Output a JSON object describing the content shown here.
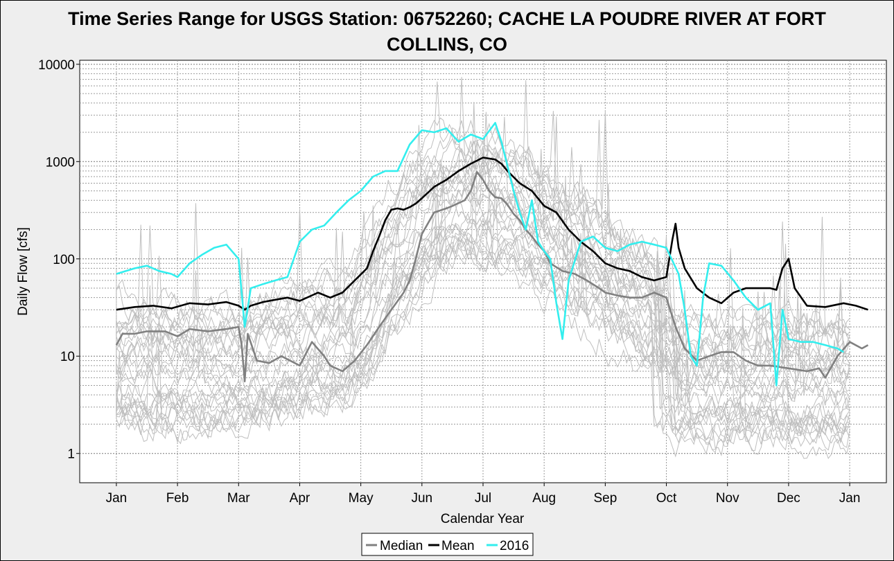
{
  "chart_data": {
    "type": "line",
    "title": "Time Series Range for USGS Station: 06752260; CACHE LA POUDRE RIVER AT FORT COLLINS, CO",
    "title_lines": [
      "Time Series Range for USGS Station: 06752260; CACHE LA POUDRE RIVER AT FORT",
      "COLLINS, CO"
    ],
    "xlabel": "Calendar Year",
    "ylabel": "Daily Flow [cfs]",
    "yscale": "log",
    "ylim": [
      0.5,
      11000
    ],
    "xlim": [
      -0.6,
      12.6
    ],
    "y_ticks": [
      1,
      10,
      100,
      1000,
      10000
    ],
    "y_tick_labels": [
      "1",
      "10",
      "100",
      "1000",
      "10000"
    ],
    "x_ticks": [
      0,
      1,
      2,
      3,
      4,
      5,
      6,
      7,
      8,
      9,
      10,
      11,
      12
    ],
    "x_tick_labels": [
      "Jan",
      "Feb",
      "Mar",
      "Apr",
      "May",
      "Jun",
      "Jul",
      "Aug",
      "Sep",
      "Oct",
      "Nov",
      "Dec",
      "Jan"
    ],
    "grid": true,
    "legend_position": "bottom",
    "background_traces_color": "#bfbfbf",
    "background_trace_count": 30,
    "series": [
      {
        "name": "Median",
        "color": "#808080",
        "points": [
          [
            0,
            13
          ],
          [
            0.1,
            17
          ],
          [
            0.3,
            17
          ],
          [
            0.5,
            18
          ],
          [
            0.8,
            18
          ],
          [
            1.0,
            16
          ],
          [
            1.2,
            19
          ],
          [
            1.5,
            18
          ],
          [
            1.8,
            19
          ],
          [
            2.0,
            20
          ],
          [
            2.05,
            13
          ],
          [
            2.1,
            5.5
          ],
          [
            2.15,
            17
          ],
          [
            2.3,
            9
          ],
          [
            2.5,
            8.5
          ],
          [
            2.7,
            10
          ],
          [
            3.0,
            8
          ],
          [
            3.2,
            14
          ],
          [
            3.4,
            10
          ],
          [
            3.5,
            8
          ],
          [
            3.7,
            7
          ],
          [
            3.9,
            9
          ],
          [
            4.1,
            13
          ],
          [
            4.3,
            20
          ],
          [
            4.5,
            30
          ],
          [
            4.7,
            45
          ],
          [
            4.8,
            60
          ],
          [
            4.9,
            100
          ],
          [
            5.0,
            180
          ],
          [
            5.2,
            300
          ],
          [
            5.4,
            330
          ],
          [
            5.5,
            350
          ],
          [
            5.7,
            400
          ],
          [
            5.8,
            500
          ],
          [
            5.9,
            780
          ],
          [
            6.0,
            650
          ],
          [
            6.1,
            500
          ],
          [
            6.2,
            430
          ],
          [
            6.3,
            420
          ],
          [
            6.4,
            360
          ],
          [
            6.5,
            290
          ],
          [
            6.6,
            250
          ],
          [
            6.7,
            200
          ],
          [
            6.8,
            170
          ],
          [
            6.9,
            140
          ],
          [
            7.0,
            120
          ],
          [
            7.1,
            90
          ],
          [
            7.3,
            75
          ],
          [
            7.5,
            70
          ],
          [
            7.7,
            60
          ],
          [
            7.9,
            50
          ],
          [
            8.0,
            45
          ],
          [
            8.2,
            42
          ],
          [
            8.4,
            40
          ],
          [
            8.6,
            40
          ],
          [
            8.8,
            45
          ],
          [
            9.0,
            40
          ],
          [
            9.15,
            20
          ],
          [
            9.3,
            12
          ],
          [
            9.5,
            9
          ],
          [
            9.7,
            10
          ],
          [
            9.9,
            11
          ],
          [
            10.1,
            11
          ],
          [
            10.3,
            9
          ],
          [
            10.5,
            8
          ],
          [
            10.7,
            8
          ],
          [
            11.0,
            7.5
          ],
          [
            11.3,
            7
          ],
          [
            11.5,
            7.5
          ],
          [
            11.6,
            6
          ],
          [
            11.8,
            10
          ],
          [
            12.0,
            14
          ],
          [
            12.2,
            12
          ],
          [
            12.3,
            13
          ]
        ]
      },
      {
        "name": "Mean",
        "color": "#000000",
        "points": [
          [
            0,
            30
          ],
          [
            0.3,
            32
          ],
          [
            0.6,
            33
          ],
          [
            0.9,
            31
          ],
          [
            1.2,
            35
          ],
          [
            1.5,
            34
          ],
          [
            1.8,
            36
          ],
          [
            2.0,
            33
          ],
          [
            2.1,
            30
          ],
          [
            2.2,
            33
          ],
          [
            2.4,
            36
          ],
          [
            2.6,
            38
          ],
          [
            2.8,
            40
          ],
          [
            3.0,
            37
          ],
          [
            3.3,
            45
          ],
          [
            3.5,
            40
          ],
          [
            3.7,
            45
          ],
          [
            3.9,
            60
          ],
          [
            4.1,
            80
          ],
          [
            4.2,
            120
          ],
          [
            4.3,
            170
          ],
          [
            4.4,
            250
          ],
          [
            4.5,
            320
          ],
          [
            4.6,
            330
          ],
          [
            4.7,
            320
          ],
          [
            4.8,
            340
          ],
          [
            4.9,
            370
          ],
          [
            5.0,
            420
          ],
          [
            5.2,
            550
          ],
          [
            5.4,
            650
          ],
          [
            5.6,
            800
          ],
          [
            5.8,
            950
          ],
          [
            6.0,
            1100
          ],
          [
            6.2,
            1050
          ],
          [
            6.3,
            950
          ],
          [
            6.4,
            800
          ],
          [
            6.6,
            600
          ],
          [
            6.8,
            500
          ],
          [
            7.0,
            350
          ],
          [
            7.2,
            300
          ],
          [
            7.4,
            200
          ],
          [
            7.6,
            150
          ],
          [
            7.8,
            120
          ],
          [
            8.0,
            90
          ],
          [
            8.2,
            80
          ],
          [
            8.4,
            75
          ],
          [
            8.6,
            65
          ],
          [
            8.8,
            60
          ],
          [
            9.0,
            65
          ],
          [
            9.1,
            160
          ],
          [
            9.15,
            230
          ],
          [
            9.2,
            130
          ],
          [
            9.3,
            80
          ],
          [
            9.5,
            50
          ],
          [
            9.7,
            40
          ],
          [
            9.9,
            35
          ],
          [
            10.1,
            45
          ],
          [
            10.3,
            50
          ],
          [
            10.5,
            50
          ],
          [
            10.7,
            50
          ],
          [
            10.8,
            48
          ],
          [
            10.9,
            80
          ],
          [
            11.0,
            100
          ],
          [
            11.1,
            50
          ],
          [
            11.3,
            33
          ],
          [
            11.6,
            32
          ],
          [
            11.9,
            35
          ],
          [
            12.1,
            33
          ],
          [
            12.3,
            30
          ]
        ]
      },
      {
        "name": "2016",
        "color": "#33eeee",
        "points": [
          [
            0,
            70
          ],
          [
            0.3,
            80
          ],
          [
            0.5,
            85
          ],
          [
            0.7,
            75
          ],
          [
            0.9,
            70
          ],
          [
            1.0,
            65
          ],
          [
            1.2,
            90
          ],
          [
            1.4,
            110
          ],
          [
            1.6,
            130
          ],
          [
            1.8,
            140
          ],
          [
            2.0,
            100
          ],
          [
            2.1,
            20
          ],
          [
            2.2,
            50
          ],
          [
            2.4,
            55
          ],
          [
            2.6,
            60
          ],
          [
            2.8,
            65
          ],
          [
            3.0,
            150
          ],
          [
            3.2,
            200
          ],
          [
            3.4,
            220
          ],
          [
            3.6,
            300
          ],
          [
            3.8,
            400
          ],
          [
            4.0,
            500
          ],
          [
            4.2,
            700
          ],
          [
            4.4,
            800
          ],
          [
            4.6,
            800
          ],
          [
            4.8,
            1500
          ],
          [
            5.0,
            2100
          ],
          [
            5.2,
            2000
          ],
          [
            5.4,
            2200
          ],
          [
            5.6,
            1600
          ],
          [
            5.8,
            1900
          ],
          [
            6.0,
            1700
          ],
          [
            6.2,
            2500
          ],
          [
            6.3,
            1600
          ],
          [
            6.4,
            900
          ],
          [
            6.5,
            500
          ],
          [
            6.6,
            300
          ],
          [
            6.7,
            200
          ],
          [
            6.8,
            400
          ],
          [
            6.9,
            150
          ],
          [
            7.0,
            120
          ],
          [
            7.1,
            100
          ],
          [
            7.2,
            35
          ],
          [
            7.3,
            15
          ],
          [
            7.4,
            60
          ],
          [
            7.6,
            150
          ],
          [
            7.8,
            170
          ],
          [
            8.0,
            130
          ],
          [
            8.2,
            120
          ],
          [
            8.4,
            140
          ],
          [
            8.6,
            150
          ],
          [
            8.8,
            140
          ],
          [
            9.0,
            130
          ],
          [
            9.2,
            70
          ],
          [
            9.3,
            30
          ],
          [
            9.4,
            10
          ],
          [
            9.5,
            8
          ],
          [
            9.6,
            40
          ],
          [
            9.7,
            90
          ],
          [
            9.9,
            85
          ],
          [
            10.1,
            60
          ],
          [
            10.3,
            40
          ],
          [
            10.5,
            30
          ],
          [
            10.7,
            35
          ],
          [
            10.8,
            5
          ],
          [
            10.9,
            30
          ],
          [
            11.0,
            15
          ],
          [
            11.2,
            14
          ],
          [
            11.4,
            14
          ],
          [
            11.6,
            13
          ],
          [
            11.8,
            12
          ],
          [
            11.9,
            11
          ]
        ]
      }
    ]
  }
}
